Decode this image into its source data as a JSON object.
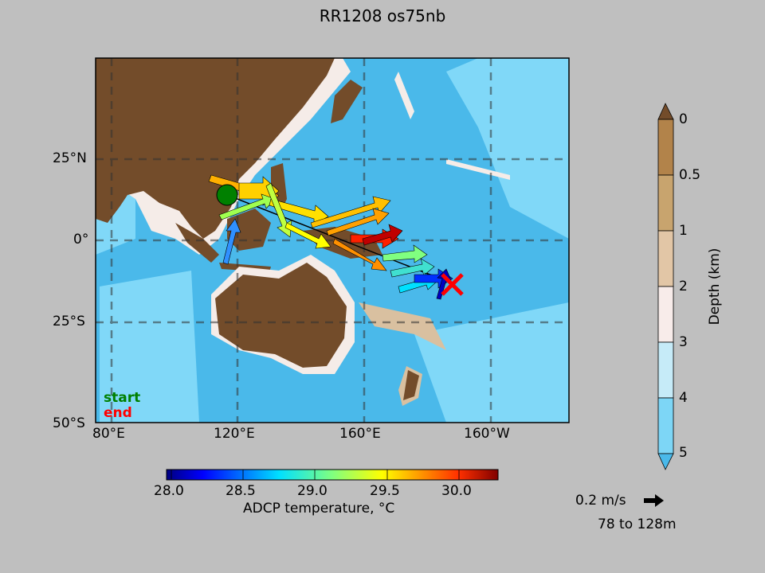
{
  "title": "RR1208 os75nb",
  "map": {
    "lat_labels": [
      "25°N",
      "0°",
      "25°S",
      "50°S"
    ],
    "lon_labels": [
      "80°E",
      "120°E",
      "160°E",
      "160°W"
    ],
    "legend": {
      "start": "start",
      "end": "end"
    },
    "colors": {
      "land": "#734c2a",
      "deep_water": "#4ab9ea",
      "abyss": "#80d8f8",
      "shelf": "#f5ece8",
      "mid": "#d9c0a0",
      "start_marker": "#008000",
      "end_marker": "#ff0000"
    }
  },
  "temperature_colorbar": {
    "ticks": [
      "28.0",
      "28.5",
      "29.0",
      "29.5",
      "30.0"
    ],
    "label": "ADCP temperature, °C",
    "range": [
      27.98,
      30.27
    ]
  },
  "depth_colorbar": {
    "ticks": [
      "0",
      "0.5",
      "1",
      "2",
      "3",
      "4",
      "5"
    ],
    "label": "Depth (km)",
    "colors": [
      "#b2834a",
      "#c8a46e",
      "#e2c6a6",
      "#f8ecea",
      "#c6ebf8",
      "#7dd6f6"
    ]
  },
  "scale": {
    "speed": "0.2 m/s",
    "depth_range": "78 to 128m"
  }
}
